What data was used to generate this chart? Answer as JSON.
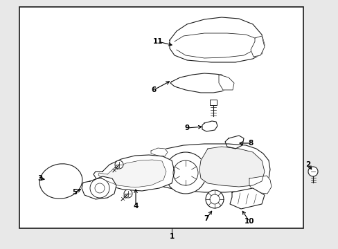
{
  "fig_width": 4.89,
  "fig_height": 3.6,
  "dpi": 100,
  "bg_color": "#e8e8e8",
  "box_bg": "#ffffff",
  "lc": "#1a1a1a",
  "lw": 0.8,
  "label_fs": 7.5
}
